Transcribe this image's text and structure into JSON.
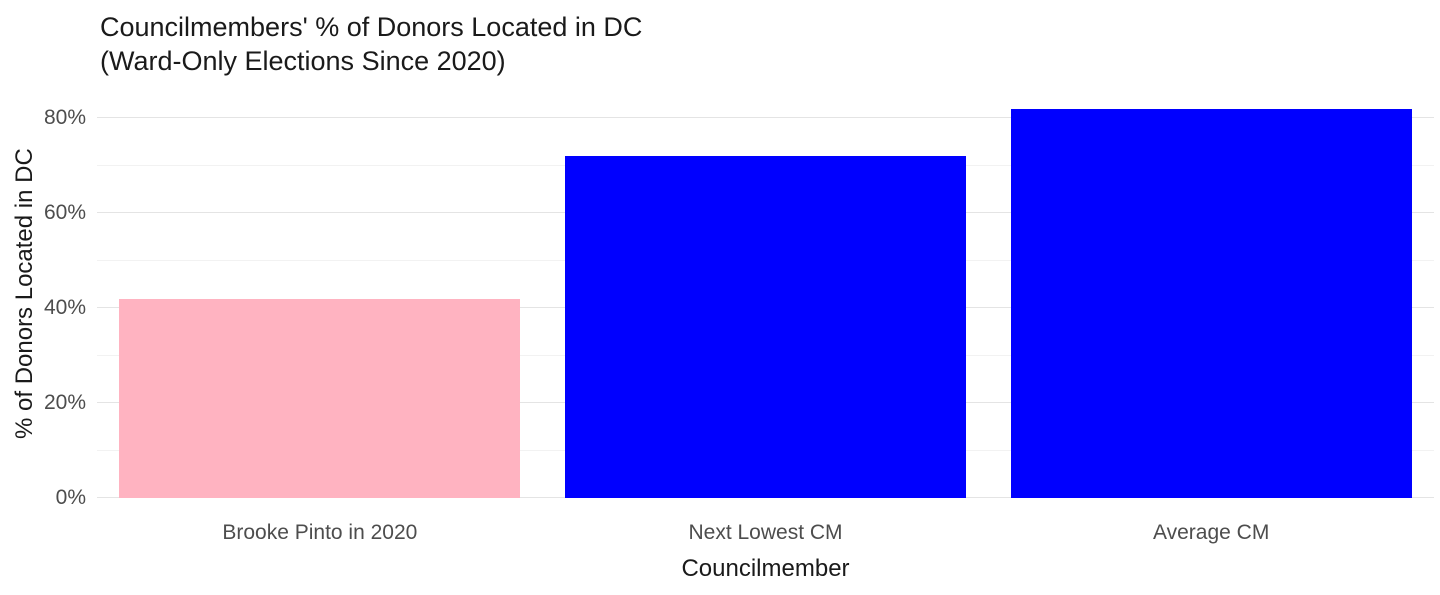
{
  "chart_data": {
    "type": "bar",
    "title": "Councilmembers' % of Donors Located in DC (Ward-Only Elections Since 2020)",
    "title_lines": [
      "Councilmembers' % of Donors Located in DC",
      "(Ward-Only Elections Since 2020)"
    ],
    "xlabel": "Councilmember",
    "ylabel": "% of Donors Located in DC",
    "categories": [
      "Brooke Pinto in 2020",
      "Next Lowest CM",
      "Average CM"
    ],
    "values": [
      42,
      72,
      82
    ],
    "bar_colors": [
      "#ffb3c1",
      "#0000ff",
      "#0000ff"
    ],
    "ylim": [
      0,
      86
    ],
    "yticks_major": [
      0,
      20,
      40,
      60,
      80
    ],
    "ytick_labels": [
      "0%",
      "20%",
      "40%",
      "60%",
      "80%"
    ],
    "yticks_minor": [
      10,
      30,
      50,
      70
    ],
    "grid": true,
    "grid_color_major": "#e4e4e4",
    "grid_color_minor": "#f2f2f2",
    "background": "#ffffff",
    "legend": "none"
  }
}
